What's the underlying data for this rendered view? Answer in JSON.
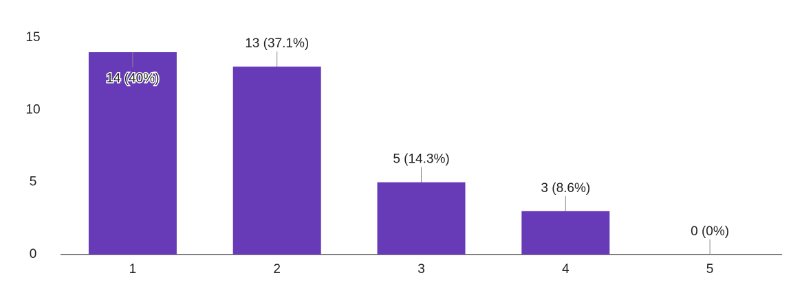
{
  "chart_data": {
    "type": "bar",
    "categories": [
      "1",
      "2",
      "3",
      "4",
      "5"
    ],
    "values": [
      14,
      13,
      5,
      3,
      0
    ],
    "value_labels": [
      "14 (40%)",
      "13 (37.1%)",
      "5 (14.3%)",
      "3 (8.6%)",
      "0 (0%)"
    ],
    "color": "#673ab7",
    "ylim": [
      0,
      15
    ],
    "yticks": [
      0,
      5,
      10,
      15
    ],
    "grid": false
  }
}
